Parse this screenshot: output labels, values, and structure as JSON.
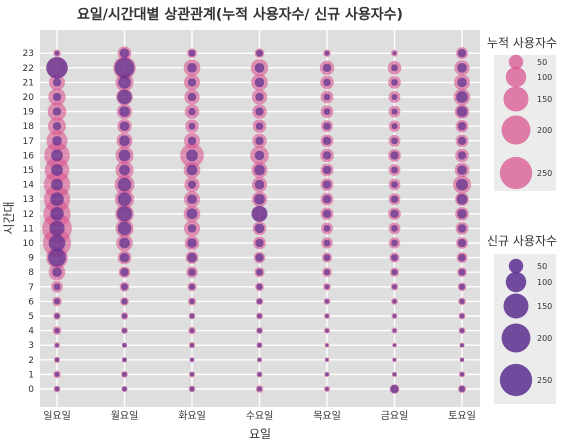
{
  "chart_data": {
    "type": "scatter",
    "title": "요일/시간대별 상관관계(누적 사용자수/ 신규 사용자수)",
    "xlabel": "요일",
    "ylabel": "시간대",
    "categories": [
      "일요일",
      "월요일",
      "화요일",
      "수요일",
      "목요일",
      "금요일",
      "토요일"
    ],
    "y_ticks": [
      "0",
      "1",
      "2",
      "3",
      "4",
      "5",
      "6",
      "7",
      "8",
      "9",
      "10",
      "11",
      "12",
      "13",
      "14",
      "15",
      "16",
      "17",
      "18",
      "19",
      "20",
      "21",
      "22",
      "23"
    ],
    "ylim": [
      0,
      23
    ],
    "grid": true,
    "colors": {
      "cumulative": "#d9558f",
      "new": "#5b2f8f",
      "panel": "#dedede",
      "legend_bg": "#ececec"
    },
    "legend": [
      {
        "title": "누적 사용자수",
        "sizes": [
          50,
          100,
          150,
          200,
          250
        ],
        "labels": [
          "50",
          "100",
          "150",
          "200",
          "250"
        ],
        "placement": "right-top"
      },
      {
        "title": "신규 사용자수",
        "sizes": [
          50,
          100,
          150,
          200,
          250
        ],
        "labels": [
          "50",
          "100",
          "150",
          "200",
          "250"
        ],
        "placement": "right-bottom"
      }
    ],
    "series": [
      {
        "name": "누적 사용자수",
        "values": [
          [
            10,
            12,
            8,
            8,
            16,
            12,
            20,
            30,
            60,
            100,
            170,
            190,
            160,
            150,
            150,
            130,
            140,
            95,
            70,
            75,
            65,
            55,
            100,
            12
          ],
          [
            8,
            10,
            6,
            6,
            10,
            12,
            16,
            20,
            28,
            40,
            60,
            70,
            75,
            80,
            85,
            70,
            70,
            55,
            45,
            50,
            60,
            70,
            110,
            40
          ],
          [
            10,
            8,
            6,
            8,
            12,
            10,
            14,
            18,
            28,
            35,
            45,
            55,
            60,
            55,
            50,
            60,
            120,
            55,
            40,
            45,
            50,
            55,
            60,
            20
          ],
          [
            12,
            8,
            6,
            8,
            10,
            10,
            12,
            16,
            22,
            28,
            35,
            40,
            55,
            50,
            50,
            55,
            75,
            45,
            40,
            45,
            50,
            60,
            65,
            20
          ],
          [
            8,
            6,
            5,
            5,
            8,
            8,
            10,
            12,
            20,
            22,
            28,
            30,
            35,
            35,
            35,
            35,
            40,
            35,
            30,
            35,
            35,
            40,
            45,
            12
          ],
          [
            20,
            6,
            5,
            5,
            8,
            8,
            10,
            12,
            18,
            22,
            28,
            30,
            35,
            30,
            30,
            30,
            35,
            30,
            28,
            30,
            30,
            35,
            40,
            10
          ],
          [
            14,
            8,
            5,
            6,
            10,
            10,
            12,
            16,
            20,
            25,
            30,
            35,
            40,
            40,
            70,
            45,
            40,
            35,
            35,
            45,
            60,
            55,
            50,
            30
          ]
        ]
      },
      {
        "name": "신규 사용자수",
        "values": [
          [
            5,
            5,
            4,
            3,
            6,
            6,
            8,
            10,
            20,
            70,
            60,
            50,
            40,
            40,
            30,
            30,
            30,
            20,
            15,
            15,
            15,
            15,
            100,
            5
          ],
          [
            5,
            5,
            4,
            4,
            5,
            6,
            8,
            10,
            15,
            20,
            25,
            40,
            50,
            40,
            40,
            25,
            30,
            25,
            20,
            25,
            45,
            35,
            85,
            20
          ],
          [
            5,
            4,
            3,
            4,
            5,
            5,
            6,
            8,
            12,
            20,
            20,
            15,
            25,
            20,
            15,
            25,
            30,
            15,
            10,
            12,
            15,
            15,
            20,
            10
          ],
          [
            5,
            4,
            3,
            4,
            5,
            5,
            6,
            8,
            10,
            15,
            15,
            20,
            55,
            25,
            20,
            25,
            20,
            15,
            12,
            15,
            15,
            20,
            20,
            10
          ],
          [
            3,
            3,
            2,
            2,
            3,
            3,
            4,
            5,
            8,
            10,
            10,
            10,
            15,
            15,
            15,
            15,
            15,
            15,
            12,
            10,
            10,
            12,
            15,
            5
          ],
          [
            15,
            3,
            2,
            2,
            3,
            3,
            4,
            5,
            8,
            10,
            10,
            10,
            15,
            12,
            10,
            10,
            15,
            10,
            8,
            8,
            8,
            10,
            10,
            3
          ],
          [
            8,
            4,
            3,
            3,
            5,
            5,
            6,
            8,
            10,
            12,
            15,
            15,
            20,
            25,
            30,
            20,
            15,
            15,
            15,
            25,
            30,
            20,
            20,
            15
          ]
        ]
      }
    ]
  }
}
